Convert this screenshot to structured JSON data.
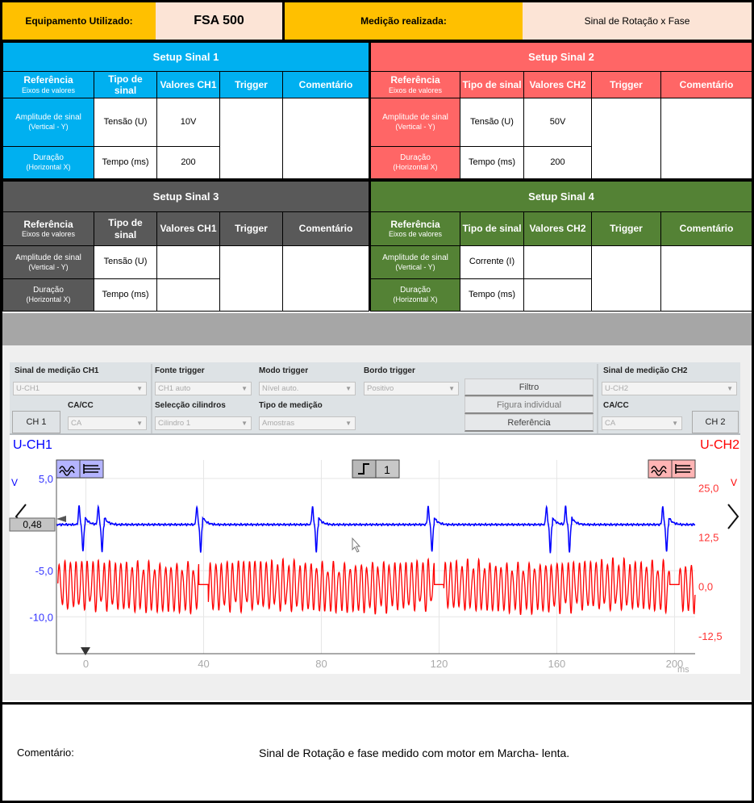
{
  "header": {
    "equipment_label": "Equipamento Utilizado:",
    "equipment_value": "FSA 500",
    "measurement_label": "Medição realizada:",
    "measurement_value": "Sinal de Rotação x Fase"
  },
  "colors": {
    "orange": "#ffc000",
    "peach": "#fce4d6",
    "setup1": "#00b0f0",
    "setup2": "#ff6666",
    "setup3": "#595959",
    "setup4": "#548235",
    "ch1": "#0000ff",
    "ch2": "#ff0000"
  },
  "setups": [
    {
      "title": "Setup Sinal 1",
      "ref": "Referência",
      "ref_sub": "Eixos de valores",
      "type": "Tipo de sinal",
      "values": "Valores CH1",
      "trigger": "Trigger",
      "comment": "Comentário",
      "row1_label": "Amplitude de sinal",
      "row1_sub": "(Vertical - Y)",
      "row1_type": "Tensão (U)",
      "row1_value": "10V",
      "row2_label": "Duração",
      "row2_sub": "(Horizontal X)",
      "row2_type": "Tempo (ms)",
      "row2_value": "200"
    },
    {
      "title": "Setup Sinal 2",
      "ref": "Referência",
      "ref_sub": "Eixos de valores",
      "type": "Tipo de sinal",
      "values": "Valores CH2",
      "trigger": "Trigger",
      "comment": "Comentário",
      "row1_label": "Amplitude de sinal",
      "row1_sub": "(Vertical - Y)",
      "row1_type": "Tensão (U)",
      "row1_value": "50V",
      "row2_label": "Duração",
      "row2_sub": "(Horizontal X)",
      "row2_type": "Tempo (ms)",
      "row2_value": "200"
    },
    {
      "title": "Setup Sinal 3",
      "ref": "Referência",
      "ref_sub": "Eixos de valores",
      "type": "Tipo de sinal",
      "values": "Valores CH1",
      "trigger": "Trigger",
      "comment": "Comentário",
      "row1_label": "Amplitude de sinal",
      "row1_sub": "(Vertical - Y)",
      "row1_type": "Tensão (U)",
      "row1_value": "",
      "row2_label": "Duração",
      "row2_sub": "(Horizontal X)",
      "row2_type": "Tempo (ms)",
      "row2_value": ""
    },
    {
      "title": "Setup Sinal 4",
      "ref": "Referência",
      "ref_sub": "Eixos de valores",
      "type": "Tipo de sinal",
      "values": "Valores CH2",
      "trigger": "Trigger",
      "comment": "Comentário",
      "row1_label": "Amplitude de sinal",
      "row1_sub": "(Vertical - Y)",
      "row1_type": "Corrente (I)",
      "row1_value": "",
      "row2_label": "Duração",
      "row2_sub": "(Horizontal X)",
      "row2_type": "Tempo (ms)",
      "row2_value": ""
    }
  ],
  "controls": {
    "ch1_signal_label": "Sinal de medição CH1",
    "ch1_signal_value": "U-CH1",
    "ch1_button": "CH 1",
    "ch1_coupling_label": "CA/CC",
    "ch1_coupling_value": "CA",
    "trigger_source_label": "Fonte trigger",
    "trigger_source_value": "CH1 auto",
    "cylinder_label": "Selecção cilindros",
    "cylinder_value": "Cilindro 1",
    "trigger_mode_label": "Modo trigger",
    "trigger_mode_value": "Nível auto.",
    "measure_type_label": "Tipo de medição",
    "measure_type_value": "Amostras",
    "trigger_edge_label": "Bordo trigger",
    "trigger_edge_value": "Positivo",
    "filter_button": "Filtro",
    "single_button": "Figura individual",
    "reference_button": "Referência",
    "ch2_signal_label": "Sinal de medição CH2",
    "ch2_signal_value": "U-CH2",
    "ch2_coupling_label": "CA/CC",
    "ch2_coupling_value": "CA",
    "ch2_button": "CH 2"
  },
  "chart_data": {
    "type": "line",
    "ch1_label": "U-CH1",
    "ch2_label": "U-CH2",
    "ch1_unit": "V",
    "ch2_unit": "V",
    "x_unit": "ms",
    "x_range": [
      -10,
      207
    ],
    "x_ticks": [
      "0",
      "40",
      "80",
      "120",
      "160",
      "200"
    ],
    "ch1_range": [
      -14,
      7
    ],
    "ch1_ticks": [
      "5,0",
      "0,0",
      "-5,0",
      "-10,0"
    ],
    "ch2_range": [
      -17,
      32
    ],
    "ch2_ticks": [
      "25,0",
      "12,5",
      "0,0",
      "-12,5"
    ],
    "trigger_channel": "1",
    "ch1_offset_marker": "0,48",
    "grid": true,
    "series": [
      {
        "name": "U-CH1",
        "baseline": 0,
        "pulse_peak": 2.0,
        "pulse_trough": -3.0,
        "pulse_times_ms": [
          -2.3,
          4.2,
          37.7,
          77.0,
          116.3,
          156.5,
          163.0,
          196.0
        ]
      },
      {
        "name": "U-CH2",
        "amplitude": 7,
        "period_ms": 1.9,
        "gap_times_ms": [
          40,
          120,
          200
        ]
      }
    ]
  },
  "footer": {
    "comment_label": "Comentário:",
    "comment_text": "Sinal de Rotação e fase medido com motor em Marcha- lenta."
  }
}
